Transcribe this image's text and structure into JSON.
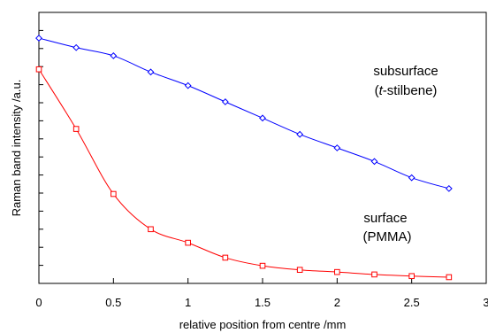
{
  "chart_data": {
    "type": "line",
    "title": "",
    "xlabel": "relative position from centre /mm",
    "ylabel": "Raman band intensity /a.u.",
    "xlim": [
      0,
      3
    ],
    "x_ticks": [
      "0",
      "0.5",
      "1",
      "1.5",
      "2",
      "2.5",
      "3"
    ],
    "ylim": [
      0,
      1
    ],
    "y_tick_count": 14,
    "y_tick_labels": "none",
    "grid": false,
    "legend": "none",
    "x": [
      0,
      0.25,
      0.5,
      0.75,
      1.0,
      1.25,
      1.5,
      1.75,
      2.0,
      2.25,
      2.5,
      2.75
    ],
    "series": [
      {
        "name": "subsurface (t-stilbene)",
        "color": "#0000ff",
        "marker": "diamond",
        "values": [
          0.905,
          0.87,
          0.84,
          0.78,
          0.73,
          0.67,
          0.61,
          0.55,
          0.5,
          0.45,
          0.39,
          0.35
        ]
      },
      {
        "name": "surface (PMMA)",
        "color": "#ff0000",
        "marker": "square",
        "values": [
          0.79,
          0.57,
          0.33,
          0.2,
          0.15,
          0.095,
          0.065,
          0.05,
          0.042,
          0.033,
          0.027,
          0.023
        ]
      }
    ],
    "annotations": {
      "subsurface_line1": "subsurface",
      "subsurface_line2_italic": "t",
      "subsurface_line2_rest": "-stilbene)",
      "subsurface_line2_open": "(",
      "surface_line1": "surface",
      "surface_line2": "(PMMA)"
    }
  }
}
